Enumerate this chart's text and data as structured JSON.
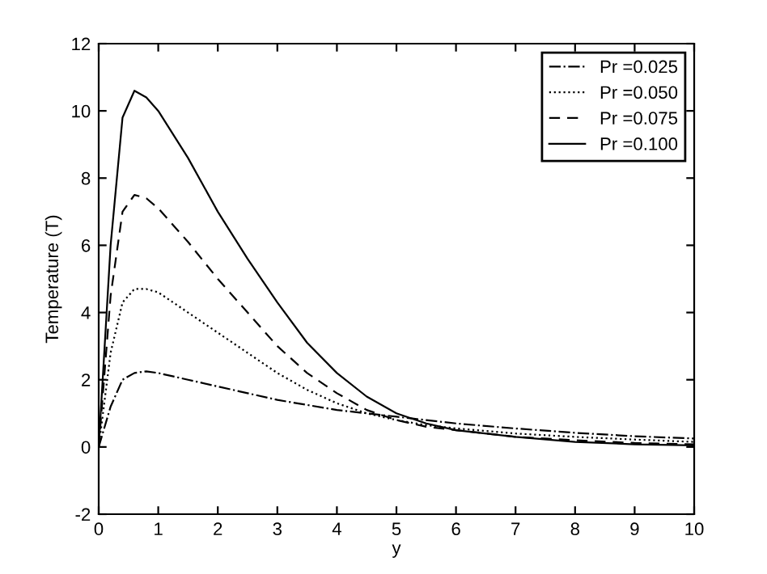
{
  "chart_data": {
    "type": "line",
    "xlabel": "y",
    "ylabel": "Temperature (T)",
    "xlim": [
      0,
      10
    ],
    "ylim": [
      -2,
      12
    ],
    "xticks": [
      0,
      1,
      2,
      3,
      4,
      5,
      6,
      7,
      8,
      9,
      10
    ],
    "yticks": [
      -2,
      0,
      2,
      4,
      6,
      8,
      10,
      12
    ],
    "grid": false,
    "legend": "top right",
    "x": [
      0,
      0.2,
      0.4,
      0.6,
      0.8,
      1,
      1.5,
      2,
      2.5,
      3,
      3.5,
      4,
      4.5,
      5,
      5.5,
      6,
      7,
      8,
      9,
      10
    ],
    "series": [
      {
        "name": "Pr =0.025",
        "color": "#000000",
        "line_style": "dashdot",
        "values": [
          0,
          1.2,
          2.0,
          2.2,
          2.25,
          2.2,
          2.0,
          1.8,
          1.6,
          1.4,
          1.25,
          1.1,
          1.0,
          0.9,
          0.8,
          0.7,
          0.55,
          0.42,
          0.32,
          0.25
        ]
      },
      {
        "name": "Pr =0.050",
        "color": "#000000",
        "line_style": "dotted",
        "values": [
          0,
          2.8,
          4.3,
          4.7,
          4.7,
          4.6,
          4.0,
          3.4,
          2.8,
          2.2,
          1.7,
          1.3,
          1.0,
          0.8,
          0.65,
          0.55,
          0.4,
          0.3,
          0.22,
          0.15
        ]
      },
      {
        "name": "Pr =0.075",
        "color": "#000000",
        "line_style": "dashed",
        "values": [
          0,
          4.5,
          7.0,
          7.5,
          7.4,
          7.1,
          6.1,
          5.0,
          4.0,
          3.0,
          2.2,
          1.6,
          1.1,
          0.8,
          0.6,
          0.5,
          0.3,
          0.2,
          0.12,
          0.08
        ]
      },
      {
        "name": "Pr =0.100",
        "color": "#000000",
        "line_style": "solid",
        "values": [
          0,
          6,
          9.8,
          10.6,
          10.4,
          10,
          8.6,
          7.0,
          5.6,
          4.3,
          3.1,
          2.2,
          1.5,
          1.0,
          0.7,
          0.5,
          0.3,
          0.15,
          0.08,
          0.05
        ]
      }
    ]
  }
}
